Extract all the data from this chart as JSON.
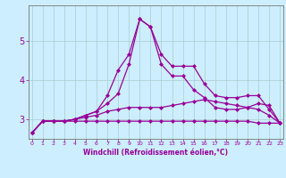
{
  "xlabel": "Windchill (Refroidissement éolien,°C)",
  "background_color": "#cceeff",
  "grid_color": "#aacccc",
  "line_color": "#990099",
  "x_ticks": [
    0,
    1,
    2,
    3,
    4,
    5,
    6,
    7,
    8,
    9,
    10,
    11,
    12,
    13,
    14,
    15,
    16,
    17,
    18,
    19,
    20,
    21,
    22,
    23
  ],
  "y_ticks": [
    3,
    4,
    5
  ],
  "ylim": [
    2.5,
    5.9
  ],
  "xlim": [
    -0.3,
    23.3
  ],
  "series": [
    [
      2.65,
      2.95,
      2.95,
      2.95,
      3.0,
      3.1,
      3.2,
      3.6,
      4.25,
      4.65,
      5.55,
      5.35,
      4.65,
      4.35,
      4.35,
      4.35,
      3.9,
      3.6,
      3.55,
      3.55,
      3.6,
      3.6,
      3.25,
      2.9
    ],
    [
      2.65,
      2.95,
      2.95,
      2.95,
      3.0,
      3.1,
      3.2,
      3.4,
      3.65,
      4.4,
      5.55,
      5.35,
      4.4,
      4.1,
      4.1,
      3.75,
      3.55,
      3.3,
      3.25,
      3.25,
      3.3,
      3.4,
      3.35,
      2.9
    ],
    [
      2.65,
      2.95,
      2.95,
      2.95,
      3.0,
      3.05,
      3.1,
      3.2,
      3.25,
      3.3,
      3.3,
      3.3,
      3.3,
      3.35,
      3.4,
      3.45,
      3.5,
      3.45,
      3.4,
      3.35,
      3.3,
      3.25,
      3.1,
      2.9
    ],
    [
      2.65,
      2.95,
      2.95,
      2.95,
      2.95,
      2.95,
      2.95,
      2.95,
      2.95,
      2.95,
      2.95,
      2.95,
      2.95,
      2.95,
      2.95,
      2.95,
      2.95,
      2.95,
      2.95,
      2.95,
      2.95,
      2.9,
      2.9,
      2.9
    ]
  ]
}
